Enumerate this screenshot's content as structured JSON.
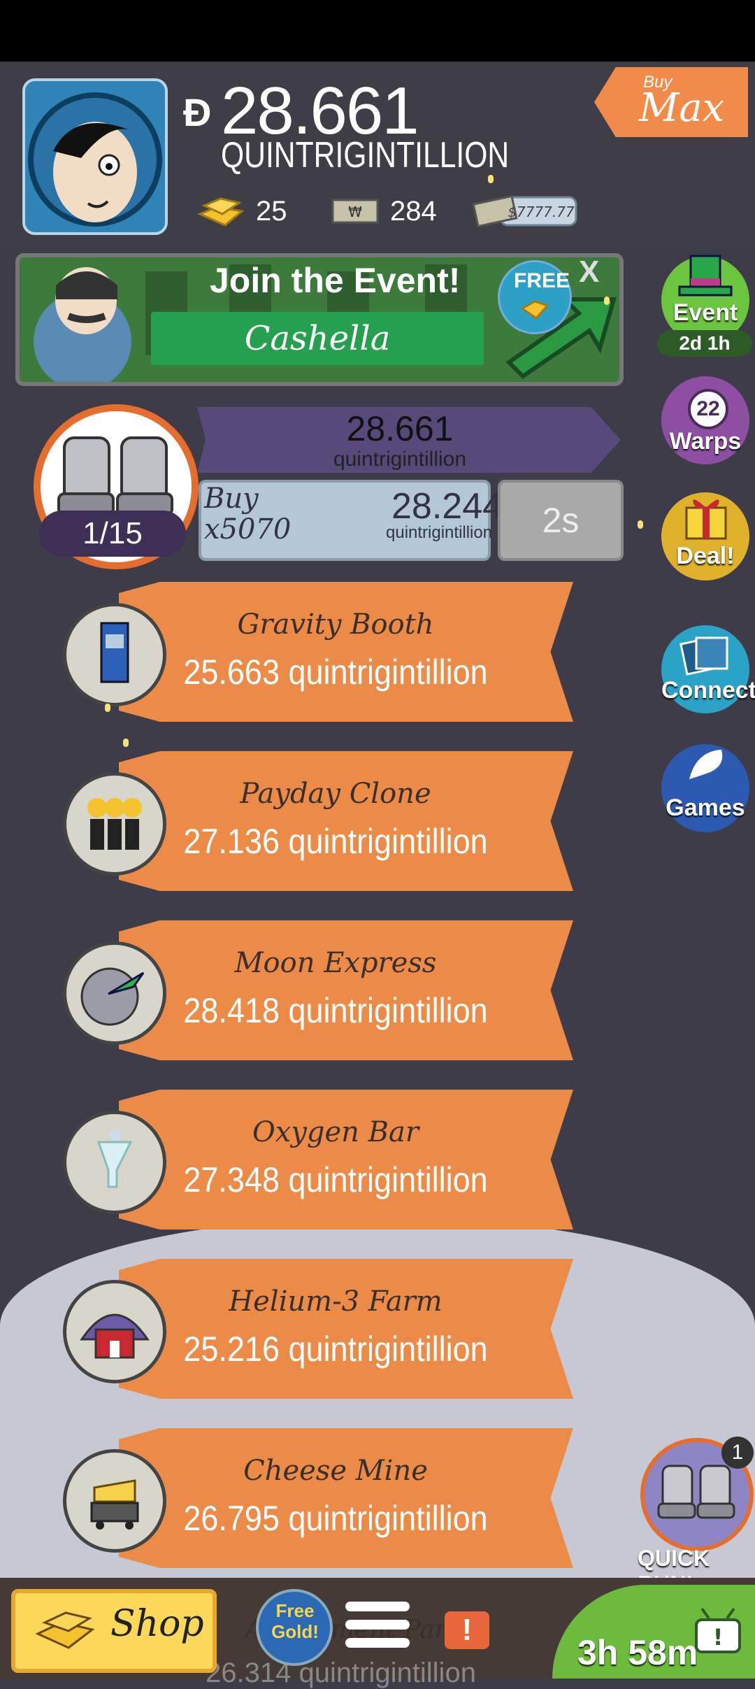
{
  "header": {
    "currency_symbol": "Đ",
    "money_amount": "28.661",
    "money_unit": "QUINTRIGINTILLION",
    "gold_count": "25",
    "megabucks_count": "284",
    "cash_label": "$7777.77",
    "buy_max_small": "Buy",
    "buy_max_big": "Max"
  },
  "event_banner": {
    "title": "Join the Event!",
    "name": "Cashella",
    "free_label": "FREE",
    "close_label": "X"
  },
  "sidebar": {
    "event_label": "Event",
    "event_timer": "2d 1h",
    "warps_count": "22",
    "warps_label": "Warps",
    "deal_label": "Deal!",
    "connect_label": "Connect",
    "games_label": "Games"
  },
  "manager": {
    "progress": "1/15",
    "total_amount": "28.661",
    "total_unit": "quintrigintillion",
    "buy_label": "Buy",
    "buy_mult": "x5070",
    "buy_cost": "28.244",
    "buy_unit": "quintrigintillion",
    "timer": "2s"
  },
  "businesses": [
    {
      "name": "Gravity Booth",
      "value": "25.663 quintrigintillion",
      "icon": "phone-booth-icon"
    },
    {
      "name": "Payday Clone",
      "value": "27.136 quintrigintillion",
      "icon": "clone-icon"
    },
    {
      "name": "Moon Express",
      "value": "28.418 quintrigintillion",
      "icon": "rocket-moon-icon"
    },
    {
      "name": "Oxygen Bar",
      "value": "27.348 quintrigintillion",
      "icon": "oxygen-icon"
    },
    {
      "name": "Helium-3 Farm",
      "value": "25.216 quintrigintillion",
      "icon": "farm-icon"
    },
    {
      "name": "Cheese Mine",
      "value": "26.795 quintrigintillion",
      "icon": "cheese-icon"
    }
  ],
  "partial_business": {
    "name": "Amusement Park",
    "value": "26.314 quintrigintillion"
  },
  "quick_run": {
    "label": "QUICK RUN!",
    "badge": "1"
  },
  "bottom": {
    "shop_label": "Shop",
    "free_gold_label": "Free Gold!",
    "alert_label": "!",
    "timer_label": "3h 58m"
  },
  "colors": {
    "background": "#3d3c48",
    "ribbon": "#ec8b47",
    "manager_ring": "#e56d2e",
    "event_green": "#25a04e"
  }
}
